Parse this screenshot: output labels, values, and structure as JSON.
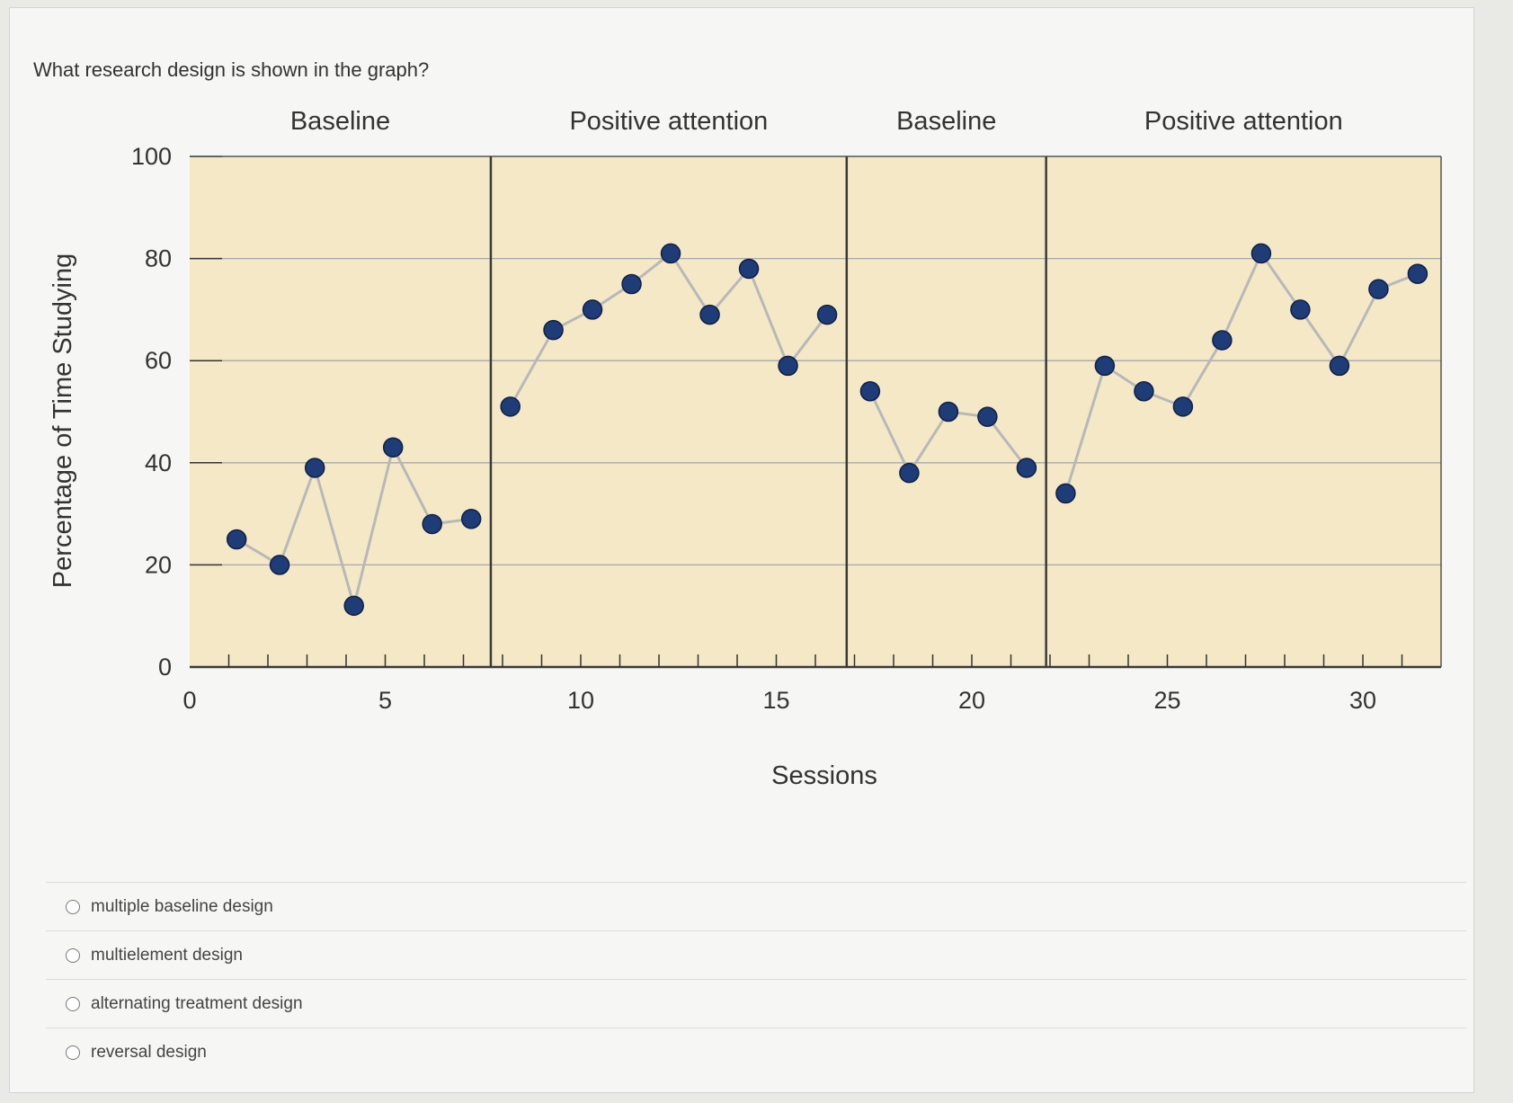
{
  "question": "What research design is shown in the graph?",
  "colors": {
    "plot_bg": "#f5e8c6",
    "marker": "#1e3c78",
    "line": "#b8b8b8",
    "grid": "#a8a8a8",
    "frame": "#3a3a3a"
  },
  "chart_data": {
    "type": "line",
    "xlabel": "Sessions",
    "ylabel": "Percentage of Time Studying",
    "xlim": [
      0,
      32
    ],
    "ylim": [
      0,
      100
    ],
    "x_ticks": [
      "0",
      "5",
      "10",
      "15",
      "20",
      "25",
      "30"
    ],
    "y_ticks": [
      "0",
      "20",
      "40",
      "60",
      "80",
      "100"
    ],
    "phase_lines_x": [
      7.7,
      16.8,
      21.9
    ],
    "phases": [
      {
        "label": "Baseline",
        "x_start": 0,
        "x_end": 7.7,
        "points": [
          [
            1.2,
            25
          ],
          [
            2.3,
            20
          ],
          [
            3.2,
            39
          ],
          [
            4.2,
            12
          ],
          [
            5.2,
            43
          ],
          [
            6.2,
            28
          ],
          [
            7.2,
            29
          ]
        ]
      },
      {
        "label": "Positive attention",
        "x_start": 7.7,
        "x_end": 16.8,
        "points": [
          [
            8.2,
            51
          ],
          [
            9.3,
            66
          ],
          [
            10.3,
            70
          ],
          [
            11.3,
            75
          ],
          [
            12.3,
            81
          ],
          [
            13.3,
            69
          ],
          [
            14.3,
            78
          ],
          [
            15.3,
            59
          ],
          [
            16.3,
            69
          ]
        ]
      },
      {
        "label": "Baseline",
        "x_start": 16.8,
        "x_end": 21.9,
        "points": [
          [
            17.4,
            54
          ],
          [
            18.4,
            38
          ],
          [
            19.4,
            50
          ],
          [
            20.4,
            49
          ],
          [
            21.4,
            39
          ]
        ]
      },
      {
        "label": "Positive attention",
        "x_start": 21.9,
        "x_end": 32,
        "points": [
          [
            22.4,
            34
          ],
          [
            23.4,
            59
          ],
          [
            24.4,
            54
          ],
          [
            25.4,
            51
          ],
          [
            26.4,
            64
          ],
          [
            27.4,
            81
          ],
          [
            28.4,
            70
          ],
          [
            29.4,
            59
          ],
          [
            30.4,
            74
          ],
          [
            31.4,
            77
          ]
        ]
      }
    ]
  },
  "options": [
    {
      "label": "multiple baseline design"
    },
    {
      "label": "multielement design"
    },
    {
      "label": "alternating treatment design"
    },
    {
      "label": "reversal design"
    }
  ]
}
